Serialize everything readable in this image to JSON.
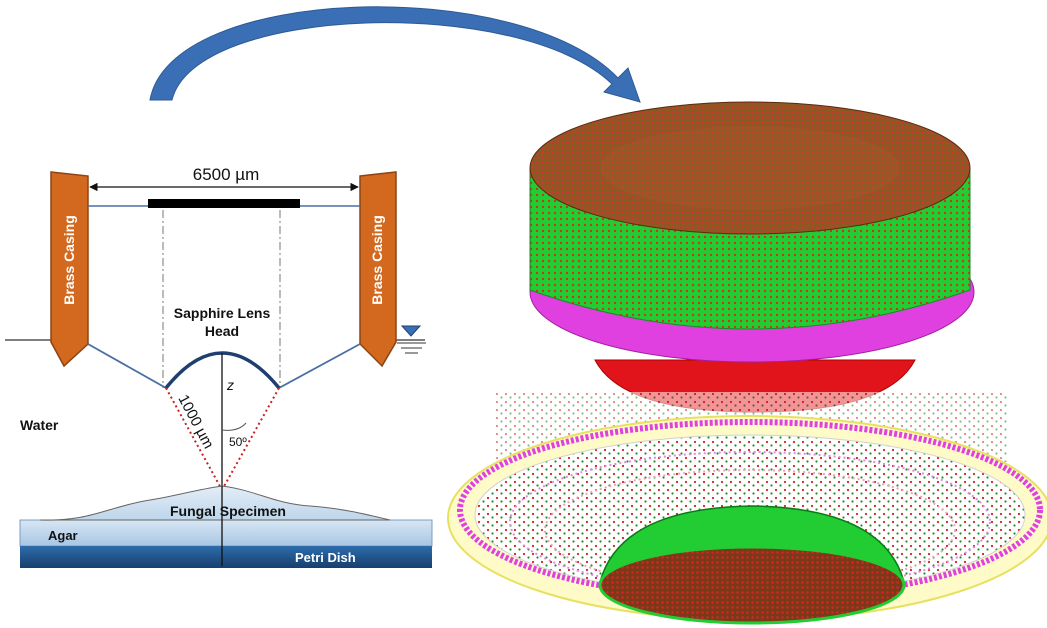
{
  "diagram": {
    "dimension_label": "6500 µm",
    "left_casing_label": "Brass Casing",
    "right_casing_label": "Brass Casing",
    "lens_label_line1": "Sapphire Lens",
    "lens_label_line2": "Head",
    "axis_label": "z",
    "radius_label": "1000 µm",
    "angle_label": "50º",
    "water_label": "Water",
    "specimen_label": "Fungal Specimen",
    "agar_label": "Agar",
    "dish_label": "Petri Dish"
  },
  "colors": {
    "brass": "#d2691e",
    "arrow_blue": "#3b6fb5",
    "mesh_green": "#22cc33",
    "mesh_red": "#e0141a",
    "mesh_magenta": "#e040e0",
    "agar": "#bcd4ea",
    "dish": "#1f5a96",
    "dotted_red": "#cc2020"
  }
}
